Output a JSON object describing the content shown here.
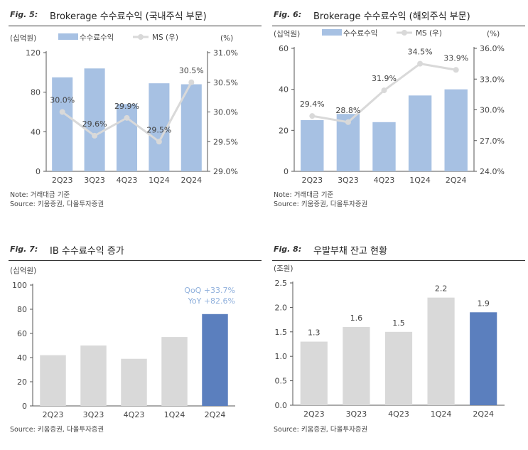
{
  "chart_data": [
    {
      "type": "bar+line",
      "fig_label": "Fig. 5:",
      "title": "Brokerage 수수료수익 (국내주식 부문)",
      "ylabel_left": "(십억원)",
      "ylabel_right": "(%)",
      "categories": [
        "2Q23",
        "3Q23",
        "4Q23",
        "1Q24",
        "2Q24"
      ],
      "y_ticks": [
        "0",
        "40",
        "80",
        "120"
      ],
      "y2_ticks": [
        "29.0%",
        "29.5%",
        "30.0%",
        "30.5%",
        "31.0%"
      ],
      "ylim": [
        0,
        120
      ],
      "y2lim": [
        29.0,
        31.0
      ],
      "legend": [
        "수수료수익",
        "MS (우)"
      ],
      "series": [
        {
          "name": "수수료수익",
          "type": "bar",
          "axis": "left",
          "values": [
            95,
            104,
            68,
            89,
            88
          ]
        },
        {
          "name": "MS (우)",
          "type": "line",
          "axis": "right",
          "values": [
            30.0,
            29.6,
            29.9,
            29.5,
            30.5
          ],
          "labels": [
            "30.0%",
            "29.6%",
            "29.9%",
            "29.5%",
            "30.5%"
          ]
        }
      ],
      "notes": [
        "Note: 거래대금 기준",
        "Source: 키움증권, 다올투자증권"
      ]
    },
    {
      "type": "bar+line",
      "fig_label": "Fig. 6:",
      "title": "Brokerage 수수료수익  (해외주식 부문)",
      "ylabel_left": "(십억원)",
      "ylabel_right": "(%)",
      "categories": [
        "2Q23",
        "3Q23",
        "4Q23",
        "1Q24",
        "2Q24"
      ],
      "y_ticks": [
        "0",
        "20",
        "40",
        "60"
      ],
      "y2_ticks": [
        "24.0%",
        "27.0%",
        "30.0%",
        "33.0%",
        "36.0%"
      ],
      "ylim": [
        0,
        60
      ],
      "y2lim": [
        24.0,
        36.0
      ],
      "legend": [
        "수수료수익",
        "MS (우)"
      ],
      "series": [
        {
          "name": "수수료수익",
          "type": "bar",
          "axis": "left",
          "values": [
            25,
            28,
            24,
            37,
            40
          ]
        },
        {
          "name": "MS (우)",
          "type": "line",
          "axis": "right",
          "values": [
            29.4,
            28.8,
            31.9,
            34.5,
            33.9
          ],
          "labels": [
            "29.4%",
            "28.8%",
            "31.9%",
            "34.5%",
            "33.9%"
          ]
        }
      ],
      "notes": [
        "Note: 거래대금 기준",
        "Source: 키움증권, 다올투자증권"
      ]
    },
    {
      "type": "bar",
      "fig_label": "Fig. 7:",
      "title": "IB 수수료수익 증가",
      "ylabel_left": "(십억원)",
      "categories": [
        "2Q23",
        "3Q23",
        "4Q23",
        "1Q24",
        "2Q24"
      ],
      "y_ticks": [
        "0",
        "20",
        "40",
        "60",
        "80",
        "100"
      ],
      "ylim": [
        0,
        100
      ],
      "series": [
        {
          "name": "IB 수수료수익",
          "type": "bar",
          "values": [
            42,
            50,
            39,
            57,
            76
          ]
        }
      ],
      "annotations": [
        "QoQ +33.7%",
        "YoY +82.6%"
      ],
      "notes": [
        "Source: 키움증권, 다올투자증권"
      ]
    },
    {
      "type": "bar",
      "fig_label": "Fig. 8:",
      "title": "우발부채 잔고 현황",
      "ylabel_left": "(조원)",
      "categories": [
        "2Q23",
        "3Q23",
        "4Q23",
        "1Q24",
        "2Q24"
      ],
      "y_ticks": [
        "0.0",
        "0.5",
        "1.0",
        "1.5",
        "2.0",
        "2.5"
      ],
      "ylim": [
        0,
        2.5
      ],
      "series": [
        {
          "name": "우발부채 잔고",
          "type": "bar",
          "values": [
            1.3,
            1.6,
            1.5,
            2.2,
            1.9
          ],
          "labels": [
            "1.3",
            "1.6",
            "1.5",
            "2.2",
            "1.9"
          ]
        }
      ],
      "notes": [
        "Source: 키움증권, 다올투자증권"
      ]
    }
  ],
  "colors": {
    "bar_blue_light": "#a7c1e3",
    "bar_grey": "#d9d9d9",
    "bar_highlight": "#5b7fbe",
    "line_grey": "#d9d9d9",
    "annotation_blue": "#8fb0dc",
    "axis": "#555555"
  }
}
